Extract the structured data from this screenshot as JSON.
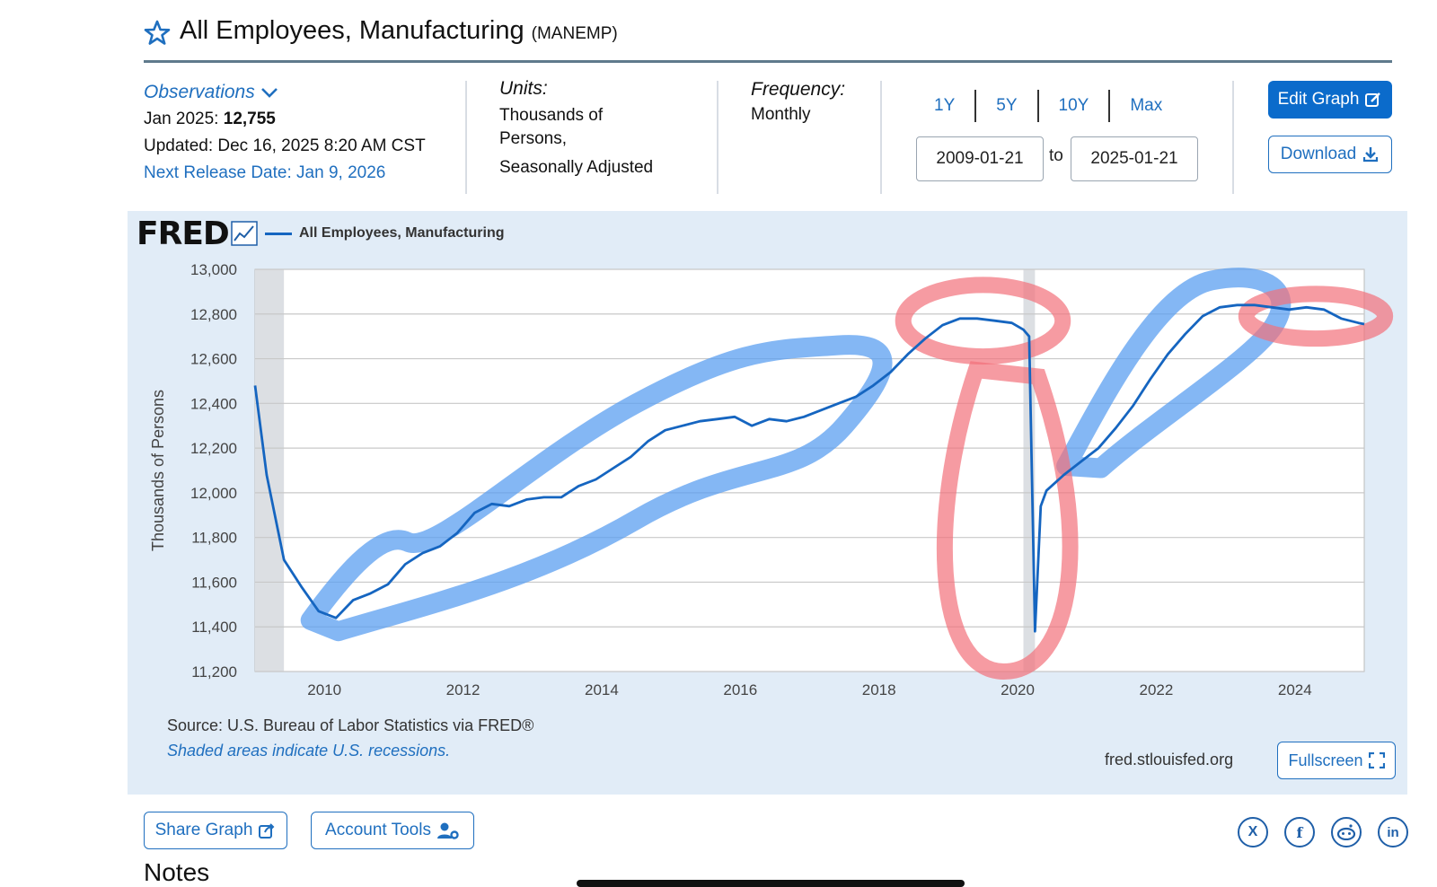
{
  "header": {
    "title": "All Employees, Manufacturing",
    "series_id": "(MANEMP)"
  },
  "observations": {
    "label": "Observations",
    "latest_prefix": "Jan 2025:",
    "latest_value": "12,755",
    "updated": "Updated: Dec 16, 2025 8:20 AM CST",
    "next_release": "Next Release Date: Jan 9, 2026"
  },
  "units": {
    "label": "Units:",
    "line1": "Thousands of",
    "line2": "Persons,",
    "line3": "Seasonally Adjusted"
  },
  "frequency": {
    "label": "Frequency:",
    "value": "Monthly"
  },
  "range": {
    "buttons": [
      "1Y",
      "5Y",
      "10Y",
      "Max"
    ],
    "start": "2009-01-21",
    "to": "to",
    "end": "2025-01-21"
  },
  "actions": {
    "edit": "Edit Graph",
    "download": "Download",
    "fullscreen": "Fullscreen",
    "share": "Share Graph",
    "account": "Account Tools"
  },
  "chart_footer": {
    "source": "Source: U.S. Bureau of Labor Statistics via FRED®",
    "shaded_note": "Shaded areas indicate U.S. recessions.",
    "site": "fred.stlouisfed.org"
  },
  "notes_heading": "Notes",
  "fred_logo": "FRED",
  "social": [
    "X",
    "f",
    "reddit",
    "in"
  ],
  "colors": {
    "accent": "#1f6fbf",
    "line": "#1565c0",
    "panel": "#e1ecf7",
    "recession": "#dcdfe3",
    "highlight_blue": "#5b9ff0",
    "highlight_red": "#f2707a"
  },
  "chart_data": {
    "type": "line",
    "title": "",
    "xlabel": "",
    "ylabel": "Thousands of Persons",
    "legend": "All Employees, Manufacturing",
    "ylim": [
      11200,
      13000
    ],
    "yticks": [
      11200,
      11400,
      11600,
      11800,
      12000,
      12200,
      12400,
      12600,
      12800,
      13000
    ],
    "ytick_labels": [
      "11,200",
      "11,400",
      "11,600",
      "11,800",
      "12,000",
      "12,200",
      "12,400",
      "12,600",
      "12,800",
      "13,000"
    ],
    "xlim": [
      "2009-01",
      "2025-01"
    ],
    "xtick_labels": [
      "2010",
      "2012",
      "2014",
      "2016",
      "2018",
      "2020",
      "2022",
      "2024"
    ],
    "recessions": [
      [
        "2009-01",
        "2009-06"
      ],
      [
        "2020-02",
        "2020-04"
      ]
    ],
    "grid": true,
    "series": [
      {
        "name": "All Employees, Manufacturing",
        "x": [
          "2009-01",
          "2009-03",
          "2009-06",
          "2009-09",
          "2009-12",
          "2010-03",
          "2010-06",
          "2010-09",
          "2010-12",
          "2011-03",
          "2011-06",
          "2011-09",
          "2011-12",
          "2012-03",
          "2012-06",
          "2012-09",
          "2012-12",
          "2013-03",
          "2013-06",
          "2013-09",
          "2013-12",
          "2014-03",
          "2014-06",
          "2014-09",
          "2014-12",
          "2015-03",
          "2015-06",
          "2015-09",
          "2015-12",
          "2016-03",
          "2016-06",
          "2016-09",
          "2016-12",
          "2017-03",
          "2017-06",
          "2017-09",
          "2017-12",
          "2018-03",
          "2018-06",
          "2018-09",
          "2018-12",
          "2019-03",
          "2019-06",
          "2019-09",
          "2019-12",
          "2020-02",
          "2020-03",
          "2020-04",
          "2020-05",
          "2020-06",
          "2020-09",
          "2020-12",
          "2021-03",
          "2021-06",
          "2021-09",
          "2021-12",
          "2022-03",
          "2022-06",
          "2022-09",
          "2022-12",
          "2023-03",
          "2023-06",
          "2023-09",
          "2023-12",
          "2024-03",
          "2024-06",
          "2024-09",
          "2024-12",
          "2025-01"
        ],
        "values": [
          12480,
          12080,
          11700,
          11580,
          11470,
          11440,
          11520,
          11550,
          11590,
          11680,
          11730,
          11760,
          11820,
          11910,
          11950,
          11940,
          11970,
          11980,
          11980,
          12030,
          12060,
          12110,
          12160,
          12230,
          12280,
          12300,
          12320,
          12330,
          12340,
          12300,
          12330,
          12320,
          12340,
          12370,
          12400,
          12430,
          12480,
          12540,
          12620,
          12690,
          12750,
          12780,
          12780,
          12770,
          12760,
          12730,
          12700,
          11380,
          11940,
          12010,
          12080,
          12140,
          12200,
          12290,
          12390,
          12510,
          12620,
          12710,
          12790,
          12830,
          12840,
          12840,
          12830,
          12820,
          12830,
          12820,
          12780,
          12760,
          12755
        ]
      }
    ]
  }
}
